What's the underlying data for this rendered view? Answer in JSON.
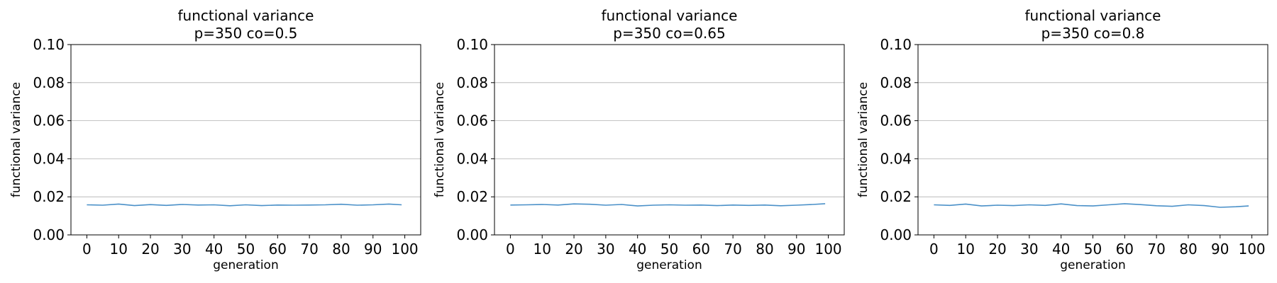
{
  "chart_data": [
    {
      "type": "line",
      "title": "functional variance",
      "subtitle": "p=350 co=0.5",
      "xlabel": "generation",
      "ylabel": "functional variance",
      "xlim": [
        -5,
        105
      ],
      "ylim": [
        0,
        0.1
      ],
      "xticks": [
        "0",
        "10",
        "20",
        "30",
        "40",
        "50",
        "60",
        "70",
        "80",
        "90",
        "100"
      ],
      "yticks": [
        "0.00",
        "0.02",
        "0.04",
        "0.06",
        "0.08",
        "0.10"
      ],
      "grid": "horizontal",
      "color": "#4a90c8",
      "series": [
        {
          "x": [
            0,
            5,
            10,
            15,
            20,
            25,
            30,
            35,
            40,
            45,
            50,
            55,
            60,
            65,
            70,
            75,
            80,
            85,
            90,
            95,
            99
          ],
          "values": [
            0.0158,
            0.0156,
            0.0162,
            0.0154,
            0.0159,
            0.0155,
            0.016,
            0.0157,
            0.0158,
            0.0153,
            0.0158,
            0.0154,
            0.0157,
            0.0156,
            0.0157,
            0.0158,
            0.0161,
            0.0156,
            0.0158,
            0.0162,
            0.0158
          ]
        }
      ]
    },
    {
      "type": "line",
      "title": "functional variance",
      "subtitle": "p=350 co=0.65",
      "xlabel": "generation",
      "ylabel": "functional variance",
      "xlim": [
        -5,
        105
      ],
      "ylim": [
        0,
        0.1
      ],
      "xticks": [
        "0",
        "10",
        "20",
        "30",
        "40",
        "50",
        "60",
        "70",
        "80",
        "90",
        "100"
      ],
      "yticks": [
        "0.00",
        "0.02",
        "0.04",
        "0.06",
        "0.08",
        "0.10"
      ],
      "grid": "horizontal",
      "color": "#4a90c8",
      "series": [
        {
          "x": [
            0,
            5,
            10,
            15,
            20,
            25,
            30,
            35,
            40,
            45,
            50,
            55,
            60,
            65,
            70,
            75,
            80,
            85,
            90,
            95,
            99
          ],
          "values": [
            0.0157,
            0.0158,
            0.016,
            0.0157,
            0.0163,
            0.0161,
            0.0156,
            0.016,
            0.0152,
            0.0156,
            0.0158,
            0.0156,
            0.0157,
            0.0154,
            0.0157,
            0.0155,
            0.0157,
            0.0153,
            0.0156,
            0.016,
            0.0164
          ]
        }
      ]
    },
    {
      "type": "line",
      "title": "functional variance",
      "subtitle": "p=350 co=0.8",
      "xlabel": "generation",
      "ylabel": "functional variance",
      "xlim": [
        -5,
        105
      ],
      "ylim": [
        0,
        0.1
      ],
      "xticks": [
        "0",
        "10",
        "20",
        "30",
        "40",
        "50",
        "60",
        "70",
        "80",
        "90",
        "100"
      ],
      "yticks": [
        "0.00",
        "0.02",
        "0.04",
        "0.06",
        "0.08",
        "0.10"
      ],
      "grid": "horizontal",
      "color": "#4a90c8",
      "series": [
        {
          "x": [
            0,
            5,
            10,
            15,
            20,
            25,
            30,
            35,
            40,
            45,
            50,
            55,
            60,
            65,
            70,
            75,
            80,
            85,
            90,
            95,
            99
          ],
          "values": [
            0.0158,
            0.0155,
            0.0162,
            0.0152,
            0.0156,
            0.0154,
            0.0158,
            0.0155,
            0.0163,
            0.0154,
            0.0152,
            0.0158,
            0.0164,
            0.0159,
            0.0153,
            0.015,
            0.0158,
            0.0154,
            0.0145,
            0.0148,
            0.0152
          ]
        }
      ]
    }
  ]
}
